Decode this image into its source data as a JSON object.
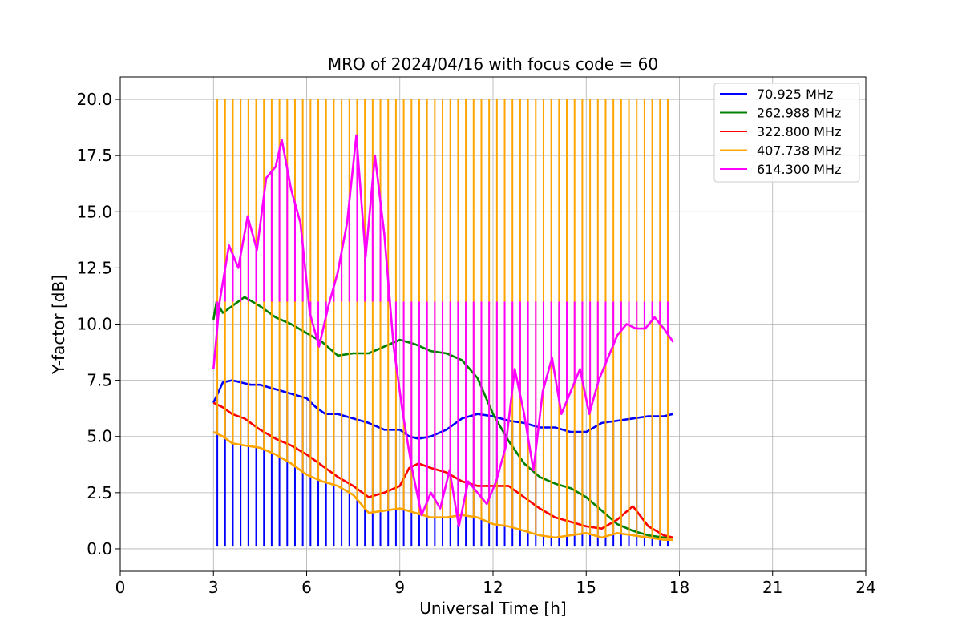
{
  "chart_data": {
    "type": "line",
    "title": "MRO of 2024/04/16 with focus code = 60",
    "xlabel": "Universal Time [h]",
    "ylabel": "Y-factor [dB]",
    "xlim": [
      0,
      24
    ],
    "ylim": [
      -1,
      21
    ],
    "xticks": [
      0,
      3,
      6,
      9,
      12,
      15,
      18,
      21,
      24
    ],
    "yticks": [
      0.0,
      2.5,
      5.0,
      7.5,
      10.0,
      12.5,
      15.0,
      17.5,
      20.0
    ],
    "ytick_labels": [
      "0.0",
      "2.5",
      "5.0",
      "7.5",
      "10.0",
      "12.5",
      "15.0",
      "17.5",
      "20.0"
    ],
    "grid": true,
    "legend_position": "top-right",
    "calibration_period_h": 0.25,
    "series": [
      {
        "name": " 70.925 MHz",
        "color": "#0000ff",
        "spike_to": 0.1,
        "x": [
          3.0,
          3.3,
          3.6,
          3.9,
          4.2,
          4.5,
          5.0,
          5.5,
          6.0,
          6.3,
          6.6,
          7.0,
          7.5,
          8.0,
          8.5,
          9.0,
          9.3,
          9.6,
          10.0,
          10.5,
          11.0,
          11.5,
          12.0,
          12.5,
          13.0,
          13.5,
          14.0,
          14.5,
          15.0,
          15.5,
          16.0,
          16.5,
          17.0,
          17.5,
          17.8
        ],
        "values": [
          6.5,
          7.4,
          7.5,
          7.4,
          7.3,
          7.3,
          7.1,
          6.9,
          6.7,
          6.3,
          6.0,
          6.0,
          5.8,
          5.6,
          5.3,
          5.3,
          5.0,
          4.9,
          5.0,
          5.3,
          5.8,
          6.0,
          5.9,
          5.7,
          5.6,
          5.4,
          5.4,
          5.2,
          5.2,
          5.6,
          5.7,
          5.8,
          5.9,
          5.9,
          6.0
        ]
      },
      {
        "name": " 262.988 MHz",
        "color": "#008000",
        "spike_to": null,
        "x": [
          3.0,
          3.1,
          3.3,
          3.6,
          4.0,
          4.5,
          5.0,
          5.5,
          6.0,
          6.5,
          7.0,
          7.5,
          8.0,
          8.5,
          9.0,
          9.5,
          10.0,
          10.5,
          11.0,
          11.5,
          12.0,
          12.5,
          13.0,
          13.5,
          14.0,
          14.5,
          15.0,
          15.5,
          16.0,
          16.5,
          17.0,
          17.5,
          17.8
        ],
        "values": [
          10.2,
          11.0,
          10.5,
          10.8,
          11.2,
          10.8,
          10.3,
          10.0,
          9.6,
          9.2,
          8.6,
          8.7,
          8.7,
          9.0,
          9.3,
          9.1,
          8.8,
          8.7,
          8.4,
          7.6,
          6.0,
          4.8,
          3.8,
          3.2,
          2.9,
          2.7,
          2.3,
          1.7,
          1.1,
          0.8,
          0.6,
          0.5,
          0.5
        ]
      },
      {
        "name": " 322.800 MHz",
        "color": "#ff0000",
        "spike_to": null,
        "x": [
          3.0,
          3.3,
          3.6,
          4.0,
          4.5,
          5.0,
          5.5,
          6.0,
          6.5,
          7.0,
          7.5,
          8.0,
          8.5,
          9.0,
          9.3,
          9.6,
          10.0,
          10.5,
          11.0,
          11.5,
          12.0,
          12.5,
          13.0,
          13.5,
          14.0,
          14.5,
          15.0,
          15.5,
          16.0,
          16.5,
          17.0,
          17.5,
          17.8
        ],
        "values": [
          6.5,
          6.3,
          6.0,
          5.8,
          5.3,
          4.9,
          4.6,
          4.2,
          3.7,
          3.2,
          2.8,
          2.3,
          2.5,
          2.8,
          3.6,
          3.8,
          3.6,
          3.4,
          3.0,
          2.8,
          2.8,
          2.8,
          2.3,
          1.8,
          1.4,
          1.2,
          1.0,
          0.9,
          1.3,
          1.9,
          1.0,
          0.6,
          0.5
        ]
      },
      {
        "name": " 407.738 MHz",
        "color": "#ffa500",
        "spike_to": 20.0,
        "x": [
          3.0,
          3.3,
          3.6,
          4.0,
          4.5,
          5.0,
          5.5,
          6.0,
          6.5,
          7.0,
          7.5,
          8.0,
          8.5,
          9.0,
          9.5,
          10.0,
          10.5,
          11.0,
          11.5,
          12.0,
          12.5,
          13.0,
          13.5,
          14.0,
          14.5,
          15.0,
          15.5,
          16.0,
          16.5,
          17.0,
          17.5,
          17.8
        ],
        "values": [
          5.2,
          5.0,
          4.7,
          4.6,
          4.5,
          4.2,
          3.8,
          3.3,
          3.0,
          2.8,
          2.4,
          1.6,
          1.7,
          1.8,
          1.6,
          1.4,
          1.4,
          1.5,
          1.4,
          1.1,
          1.0,
          0.8,
          0.6,
          0.5,
          0.6,
          0.7,
          0.5,
          0.7,
          0.6,
          0.5,
          0.4,
          0.4
        ]
      },
      {
        "name": " 614.300 MHz",
        "color": "#ff00ff",
        "spike_to": 11.0,
        "x": [
          3.0,
          3.2,
          3.5,
          3.8,
          4.1,
          4.4,
          4.7,
          5.0,
          5.2,
          5.5,
          5.8,
          6.1,
          6.4,
          6.7,
          7.0,
          7.3,
          7.6,
          7.9,
          8.2,
          8.5,
          8.8,
          9.1,
          9.4,
          9.7,
          10.0,
          10.3,
          10.6,
          10.9,
          11.2,
          11.5,
          11.8,
          12.1,
          12.4,
          12.7,
          13.0,
          13.3,
          13.6,
          13.9,
          14.2,
          14.5,
          14.8,
          15.1,
          15.4,
          15.7,
          16.0,
          16.3,
          16.6,
          16.9,
          17.2,
          17.5,
          17.8
        ],
        "values": [
          8.0,
          11.0,
          13.5,
          12.5,
          14.8,
          13.3,
          16.5,
          17.0,
          18.2,
          16.0,
          14.5,
          10.5,
          9.0,
          10.8,
          12.3,
          14.5,
          18.4,
          13.0,
          17.5,
          14.0,
          9.0,
          6.0,
          3.5,
          1.5,
          2.5,
          1.8,
          3.5,
          1.0,
          3.0,
          2.5,
          2.0,
          3.0,
          4.5,
          8.0,
          6.0,
          3.5,
          7.0,
          8.5,
          6.0,
          7.0,
          8.0,
          6.0,
          7.5,
          8.5,
          9.5,
          10.0,
          9.8,
          9.8,
          10.3,
          9.8,
          9.2
        ]
      }
    ]
  }
}
